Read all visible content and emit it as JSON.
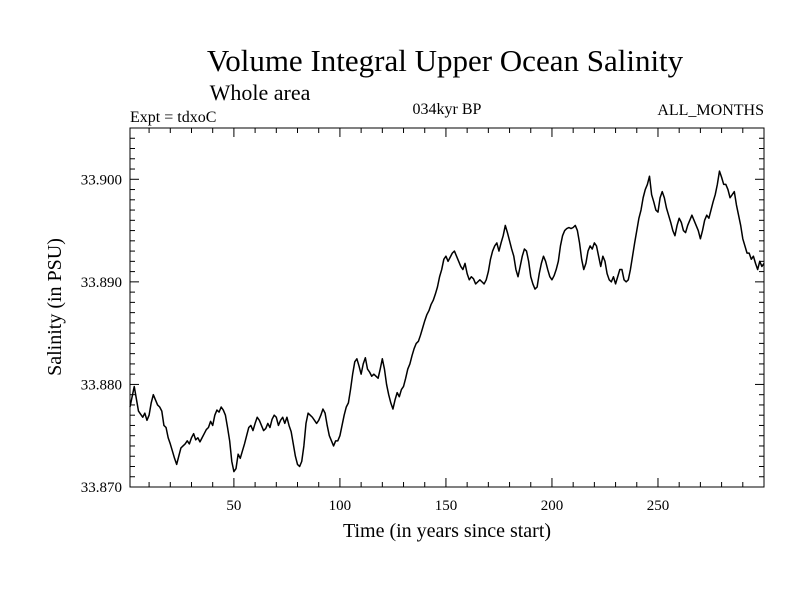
{
  "chart_data": {
    "type": "line",
    "title": "Volume Integral Upper Ocean Salinity",
    "subtitle": "Whole area",
    "label_left": "Expt = tdxoC",
    "label_center": "034kyr BP",
    "label_right": "ALL_MONTHS",
    "xlabel": "Time (in years since start)",
    "ylabel": "Salinity (in PSU)",
    "xlim": [
      1,
      300
    ],
    "ylim": [
      33.87,
      33.905
    ],
    "x_ticks": [
      50,
      100,
      150,
      200,
      250
    ],
    "y_ticks": [
      "33.870",
      "33.880",
      "33.890",
      "33.900"
    ],
    "grid": false,
    "series": [
      {
        "color": "#000000",
        "points": [
          [
            1,
            33.8778
          ],
          [
            2,
            33.8788
          ],
          [
            3,
            33.8798
          ],
          [
            4,
            33.8786
          ],
          [
            5,
            33.8774
          ],
          [
            6,
            33.8771
          ],
          [
            7,
            33.8768
          ],
          [
            8,
            33.8772
          ],
          [
            9,
            33.8765
          ],
          [
            10,
            33.877
          ],
          [
            11,
            33.8782
          ],
          [
            12,
            33.879
          ],
          [
            13,
            33.8785
          ],
          [
            14,
            33.878
          ],
          [
            15,
            33.8778
          ],
          [
            16,
            33.8774
          ],
          [
            17,
            33.876
          ],
          [
            18,
            33.8758
          ],
          [
            19,
            33.8748
          ],
          [
            20,
            33.8742
          ],
          [
            21,
            33.8735
          ],
          [
            22,
            33.8728
          ],
          [
            23,
            33.8722
          ],
          [
            24,
            33.873
          ],
          [
            25,
            33.8738
          ],
          [
            26,
            33.874
          ],
          [
            27,
            33.8742
          ],
          [
            28,
            33.8745
          ],
          [
            29,
            33.8742
          ],
          [
            30,
            33.8748
          ],
          [
            31,
            33.8752
          ],
          [
            32,
            33.8746
          ],
          [
            33,
            33.8748
          ],
          [
            34,
            33.8744
          ],
          [
            35,
            33.8748
          ],
          [
            36,
            33.8752
          ],
          [
            37,
            33.8756
          ],
          [
            38,
            33.8758
          ],
          [
            39,
            33.8764
          ],
          [
            40,
            33.876
          ],
          [
            41,
            33.877
          ],
          [
            42,
            33.8775
          ],
          [
            43,
            33.8773
          ],
          [
            44,
            33.8778
          ],
          [
            45,
            33.8775
          ],
          [
            46,
            33.877
          ],
          [
            47,
            33.8758
          ],
          [
            48,
            33.8745
          ],
          [
            49,
            33.8725
          ],
          [
            50,
            33.8715
          ],
          [
            51,
            33.8718
          ],
          [
            52,
            33.8732
          ],
          [
            53,
            33.8728
          ],
          [
            54,
            33.8735
          ],
          [
            55,
            33.8742
          ],
          [
            56,
            33.875
          ],
          [
            57,
            33.8758
          ],
          [
            58,
            33.876
          ],
          [
            59,
            33.8755
          ],
          [
            60,
            33.8762
          ],
          [
            61,
            33.8768
          ],
          [
            62,
            33.8765
          ],
          [
            63,
            33.876
          ],
          [
            64,
            33.8755
          ],
          [
            65,
            33.8757
          ],
          [
            66,
            33.8762
          ],
          [
            67,
            33.8758
          ],
          [
            68,
            33.8766
          ],
          [
            69,
            33.877
          ],
          [
            70,
            33.8768
          ],
          [
            71,
            33.876
          ],
          [
            72,
            33.8765
          ],
          [
            73,
            33.8768
          ],
          [
            74,
            33.8762
          ],
          [
            75,
            33.8768
          ],
          [
            76,
            33.876
          ],
          [
            77,
            33.8754
          ],
          [
            78,
            33.8742
          ],
          [
            79,
            33.873
          ],
          [
            80,
            33.8722
          ],
          [
            81,
            33.872
          ],
          [
            82,
            33.8725
          ],
          [
            83,
            33.874
          ],
          [
            84,
            33.8762
          ],
          [
            85,
            33.8772
          ],
          [
            86,
            33.877
          ],
          [
            87,
            33.8768
          ],
          [
            88,
            33.8765
          ],
          [
            89,
            33.8762
          ],
          [
            90,
            33.8765
          ],
          [
            91,
            33.877
          ],
          [
            92,
            33.8776
          ],
          [
            93,
            33.8772
          ],
          [
            94,
            33.876
          ],
          [
            95,
            33.875
          ],
          [
            96,
            33.8745
          ],
          [
            97,
            33.874
          ],
          [
            98,
            33.8745
          ],
          [
            99,
            33.8745
          ],
          [
            100,
            33.875
          ],
          [
            101,
            33.876
          ],
          [
            102,
            33.877
          ],
          [
            103,
            33.8778
          ],
          [
            104,
            33.8782
          ],
          [
            105,
            33.8795
          ],
          [
            106,
            33.881
          ],
          [
            107,
            33.8822
          ],
          [
            108,
            33.8825
          ],
          [
            109,
            33.8818
          ],
          [
            110,
            33.881
          ],
          [
            111,
            33.882
          ],
          [
            112,
            33.8826
          ],
          [
            113,
            33.8815
          ],
          [
            114,
            33.8812
          ],
          [
            115,
            33.8808
          ],
          [
            116,
            33.881
          ],
          [
            117,
            33.8808
          ],
          [
            118,
            33.8806
          ],
          [
            119,
            33.8815
          ],
          [
            120,
            33.8825
          ],
          [
            121,
            33.8815
          ],
          [
            122,
            33.88
          ],
          [
            123,
            33.879
          ],
          [
            124,
            33.8782
          ],
          [
            125,
            33.8776
          ],
          [
            126,
            33.8785
          ],
          [
            127,
            33.8792
          ],
          [
            128,
            33.8788
          ],
          [
            129,
            33.8795
          ],
          [
            130,
            33.8798
          ],
          [
            131,
            33.8806
          ],
          [
            132,
            33.8815
          ],
          [
            133,
            33.882
          ],
          [
            134,
            33.8828
          ],
          [
            135,
            33.8835
          ],
          [
            136,
            33.884
          ],
          [
            137,
            33.8842
          ],
          [
            138,
            33.8848
          ],
          [
            139,
            33.8855
          ],
          [
            140,
            33.8862
          ],
          [
            141,
            33.8868
          ],
          [
            142,
            33.8872
          ],
          [
            143,
            33.8878
          ],
          [
            144,
            33.8882
          ],
          [
            145,
            33.8888
          ],
          [
            146,
            33.8895
          ],
          [
            147,
            33.8905
          ],
          [
            148,
            33.8912
          ],
          [
            149,
            33.8922
          ],
          [
            150,
            33.8925
          ],
          [
            151,
            33.892
          ],
          [
            152,
            33.8924
          ],
          [
            153,
            33.8928
          ],
          [
            154,
            33.893
          ],
          [
            155,
            33.8925
          ],
          [
            156,
            33.892
          ],
          [
            157,
            33.8915
          ],
          [
            158,
            33.8912
          ],
          [
            159,
            33.8918
          ],
          [
            160,
            33.8908
          ],
          [
            161,
            33.8902
          ],
          [
            162,
            33.8905
          ],
          [
            163,
            33.8903
          ],
          [
            164,
            33.8898
          ],
          [
            165,
            33.89
          ],
          [
            166,
            33.8902
          ],
          [
            167,
            33.89
          ],
          [
            168,
            33.8898
          ],
          [
            169,
            33.8902
          ],
          [
            170,
            33.891
          ],
          [
            171,
            33.8922
          ],
          [
            172,
            33.893
          ],
          [
            173,
            33.8935
          ],
          [
            174,
            33.8938
          ],
          [
            175,
            33.893
          ],
          [
            176,
            33.8938
          ],
          [
            177,
            33.8945
          ],
          [
            178,
            33.8955
          ],
          [
            179,
            33.8948
          ],
          [
            180,
            33.894
          ],
          [
            181,
            33.8932
          ],
          [
            182,
            33.8925
          ],
          [
            183,
            33.8912
          ],
          [
            184,
            33.8905
          ],
          [
            185,
            33.8915
          ],
          [
            186,
            33.8925
          ],
          [
            187,
            33.8932
          ],
          [
            188,
            33.893
          ],
          [
            189,
            33.892
          ],
          [
            190,
            33.8905
          ],
          [
            191,
            33.8898
          ],
          [
            192,
            33.8893
          ],
          [
            193,
            33.8895
          ],
          [
            194,
            33.8908
          ],
          [
            195,
            33.8918
          ],
          [
            196,
            33.8925
          ],
          [
            197,
            33.892
          ],
          [
            198,
            33.8912
          ],
          [
            199,
            33.8905
          ],
          [
            200,
            33.8902
          ],
          [
            201,
            33.8906
          ],
          [
            202,
            33.8912
          ],
          [
            203,
            33.892
          ],
          [
            204,
            33.8935
          ],
          [
            205,
            33.8945
          ],
          [
            206,
            33.895
          ],
          [
            207,
            33.8952
          ],
          [
            208,
            33.8953
          ],
          [
            209,
            33.8952
          ],
          [
            210,
            33.8953
          ],
          [
            211,
            33.8955
          ],
          [
            212,
            33.895
          ],
          [
            213,
            33.8938
          ],
          [
            214,
            33.8922
          ],
          [
            215,
            33.8912
          ],
          [
            216,
            33.8918
          ],
          [
            217,
            33.893
          ],
          [
            218,
            33.8935
          ],
          [
            219,
            33.8932
          ],
          [
            220,
            33.8938
          ],
          [
            221,
            33.8935
          ],
          [
            222,
            33.8925
          ],
          [
            223,
            33.8915
          ],
          [
            224,
            33.8925
          ],
          [
            225,
            33.892
          ],
          [
            226,
            33.8908
          ],
          [
            227,
            33.8902
          ],
          [
            228,
            33.89
          ],
          [
            229,
            33.8905
          ],
          [
            230,
            33.8898
          ],
          [
            231,
            33.8905
          ],
          [
            232,
            33.8912
          ],
          [
            233,
            33.8912
          ],
          [
            234,
            33.8902
          ],
          [
            235,
            33.89
          ],
          [
            236,
            33.8902
          ],
          [
            237,
            33.8912
          ],
          [
            238,
            33.8925
          ],
          [
            239,
            33.8938
          ],
          [
            240,
            33.895
          ],
          [
            241,
            33.8962
          ],
          [
            242,
            33.897
          ],
          [
            243,
            33.8982
          ],
          [
            244,
            33.899
          ],
          [
            245,
            33.8995
          ],
          [
            246,
            33.9003
          ],
          [
            247,
            33.8985
          ],
          [
            248,
            33.8978
          ],
          [
            249,
            33.897
          ],
          [
            250,
            33.8968
          ],
          [
            251,
            33.8982
          ],
          [
            252,
            33.8988
          ],
          [
            253,
            33.8982
          ],
          [
            254,
            33.8972
          ],
          [
            255,
            33.8965
          ],
          [
            256,
            33.8958
          ],
          [
            257,
            33.895
          ],
          [
            258,
            33.8945
          ],
          [
            259,
            33.8955
          ],
          [
            260,
            33.8962
          ],
          [
            261,
            33.8958
          ],
          [
            262,
            33.895
          ],
          [
            263,
            33.8948
          ],
          [
            264,
            33.8955
          ],
          [
            265,
            33.896
          ],
          [
            266,
            33.8965
          ],
          [
            267,
            33.896
          ],
          [
            268,
            33.8955
          ],
          [
            269,
            33.895
          ],
          [
            270,
            33.8942
          ],
          [
            271,
            33.895
          ],
          [
            272,
            33.896
          ],
          [
            273,
            33.8965
          ],
          [
            274,
            33.8962
          ],
          [
            275,
            33.897
          ],
          [
            276,
            33.8978
          ],
          [
            277,
            33.8985
          ],
          [
            278,
            33.8995
          ],
          [
            279,
            33.9008
          ],
          [
            280,
            33.9002
          ],
          [
            281,
            33.8995
          ],
          [
            282,
            33.8995
          ],
          [
            283,
            33.899
          ],
          [
            284,
            33.8982
          ],
          [
            285,
            33.8985
          ],
          [
            286,
            33.8988
          ],
          [
            287,
            33.8975
          ],
          [
            288,
            33.8965
          ],
          [
            289,
            33.8955
          ],
          [
            290,
            33.8942
          ],
          [
            291,
            33.8935
          ],
          [
            292,
            33.8928
          ],
          [
            293,
            33.8928
          ],
          [
            294,
            33.8922
          ],
          [
            295,
            33.8925
          ],
          [
            296,
            33.8918
          ],
          [
            297,
            33.8912
          ],
          [
            298,
            33.892
          ],
          [
            299,
            33.8915
          ],
          [
            300,
            33.8918
          ]
        ]
      }
    ]
  }
}
